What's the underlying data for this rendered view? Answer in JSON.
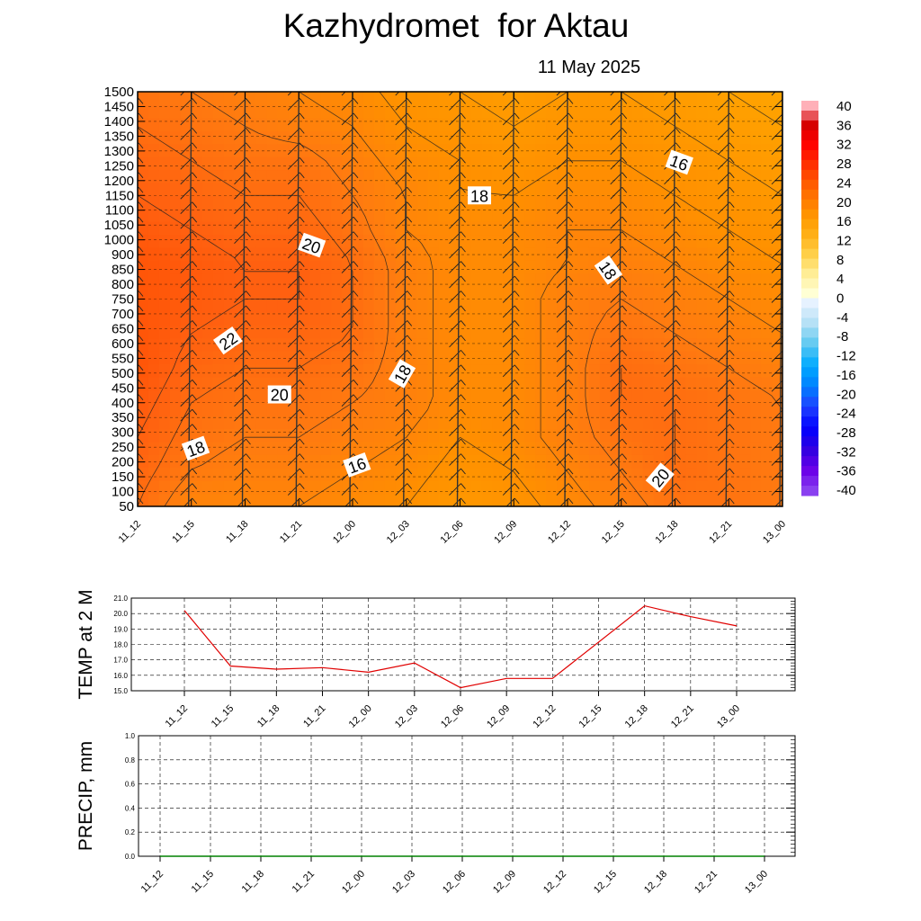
{
  "header": {
    "title": "Kazhydromet  for Aktau",
    "date": "11 May 2025"
  },
  "chart_data": [
    {
      "type": "heatmap",
      "title": "Kazhydromet  for Aktau",
      "subtitle": "11 May 2025",
      "x_categories": [
        "11_12",
        "11_15",
        "11_18",
        "11_21",
        "12_00",
        "12_03",
        "12_06",
        "12_09",
        "12_12",
        "12_15",
        "12_18",
        "12_21",
        "13_00"
      ],
      "y_levels": [
        50,
        100,
        150,
        200,
        250,
        300,
        350,
        400,
        450,
        500,
        550,
        600,
        650,
        700,
        750,
        800,
        850,
        900,
        1000,
        1050,
        1100,
        1150,
        1200,
        1250,
        1300,
        1350,
        1400,
        1450,
        1500
      ],
      "temperature_grid": [
        [
          21.0,
          19.0,
          19.0,
          19.0,
          18.5,
          18.0,
          17.0,
          17.5,
          18.5,
          19.5,
          20.5,
          20.5,
          20.0
        ],
        [
          21.5,
          20.0,
          19.5,
          19.5,
          19.0,
          18.5,
          17.5,
          18.0,
          19.0,
          20.0,
          21.0,
          20.5,
          20.0
        ],
        [
          22.0,
          20.5,
          20.0,
          20.0,
          19.5,
          19.0,
          18.0,
          18.5,
          19.5,
          20.5,
          21.0,
          20.5,
          20.0
        ],
        [
          22.5,
          21.0,
          20.5,
          20.5,
          20.0,
          19.5,
          18.5,
          18.5,
          19.5,
          21.0,
          21.0,
          20.5,
          20.0
        ],
        [
          23.0,
          21.5,
          21.0,
          21.0,
          20.5,
          19.5,
          18.5,
          18.5,
          19.5,
          21.0,
          20.5,
          20.0,
          19.5
        ],
        [
          23.0,
          22.0,
          21.5,
          21.5,
          21.0,
          19.5,
          18.5,
          18.5,
          19.5,
          20.5,
          20.0,
          19.5,
          19.0
        ],
        [
          23.0,
          22.5,
          22.0,
          22.0,
          21.0,
          19.5,
          18.5,
          18.5,
          19.5,
          20.0,
          19.5,
          19.0,
          18.5
        ],
        [
          23.0,
          22.5,
          22.0,
          22.0,
          21.0,
          19.5,
          18.5,
          18.5,
          19.0,
          19.5,
          19.0,
          18.5,
          18.0
        ],
        [
          22.5,
          22.0,
          21.5,
          21.5,
          20.5,
          19.0,
          18.5,
          18.5,
          19.0,
          19.0,
          18.5,
          18.0,
          17.5
        ],
        [
          22.0,
          21.5,
          21.0,
          21.0,
          20.0,
          19.0,
          18.0,
          18.0,
          18.5,
          18.5,
          18.0,
          17.5,
          17.0
        ],
        [
          21.5,
          21.0,
          20.5,
          20.5,
          19.5,
          18.5,
          18.0,
          17.5,
          18.0,
          18.0,
          17.5,
          17.0,
          16.5
        ],
        [
          21.0,
          20.5,
          20.0,
          19.5,
          19.0,
          18.0,
          17.5,
          17.0,
          17.5,
          17.5,
          17.0,
          16.5,
          16.0
        ],
        [
          20.5,
          20.0,
          19.5,
          19.0,
          18.5,
          17.5,
          17.0,
          16.5,
          17.0,
          17.0,
          16.5,
          16.0,
          15.5
        ]
      ],
      "temperature_grid_rows": "rows ordered from 50 (bottom) to 1500 (top) in equal steps",
      "contour_labels": [
        "22",
        "20",
        "20",
        "18",
        "18",
        "16",
        "18",
        "18",
        "16",
        "20"
      ],
      "colorbar": {
        "ticks": [
          40,
          36,
          32,
          28,
          24,
          20,
          16,
          12,
          8,
          4,
          0,
          -4,
          -8,
          -12,
          -16,
          -20,
          -24,
          -28,
          -32,
          -36,
          -40
        ],
        "range": [
          -40,
          40
        ],
        "warm_colors": [
          "#ffffd4",
          "#ffee99",
          "#ffd24d",
          "#ffb31a",
          "#ff9a00",
          "#ff7a00",
          "#ff5500",
          "#ff2a00",
          "#ff0000",
          "#d40000",
          "#ffb0b8"
        ],
        "cold_colors": [
          "#e6f2ff",
          "#b3e0f5",
          "#5ec8f0",
          "#00aaff",
          "#0080ff",
          "#2040ff",
          "#0000ff",
          "#3000e0",
          "#6a00e8",
          "#8a40f0"
        ]
      },
      "grid": true,
      "legend": "right"
    },
    {
      "type": "line",
      "ylabel": "TEMP at 2 M",
      "categories": [
        "11_12",
        "11_15",
        "11_18",
        "11_21",
        "12_00",
        "12_03",
        "12_06",
        "12_09",
        "12_12",
        "12_15",
        "12_18",
        "12_21",
        "13_00"
      ],
      "values": [
        20.2,
        16.6,
        16.4,
        16.5,
        16.2,
        16.8,
        15.2,
        15.8,
        15.8,
        null,
        20.5,
        19.8,
        19.2
      ],
      "ylim": [
        15.0,
        21.0
      ],
      "y_ticks": [
        "15.0",
        "16.0",
        "17.0",
        "18.0",
        "19.0",
        "20.0",
        "21.0"
      ],
      "color": "#e00000",
      "grid": true
    },
    {
      "type": "line",
      "ylabel": "PRECIP, mm",
      "categories": [
        "11_12",
        "11_15",
        "11_18",
        "11_21",
        "12_00",
        "12_03",
        "12_06",
        "12_09",
        "12_12",
        "12_15",
        "12_18",
        "12_21",
        "13_00"
      ],
      "values": [
        0,
        0,
        0,
        0,
        0,
        0,
        0,
        0,
        0,
        0,
        0,
        0,
        0
      ],
      "ylim": [
        0.0,
        1.0
      ],
      "y_ticks": [
        "0.0",
        "0.2",
        "0.4",
        "0.6",
        "0.8",
        "1.0"
      ],
      "color": "#008000",
      "grid": true
    }
  ]
}
